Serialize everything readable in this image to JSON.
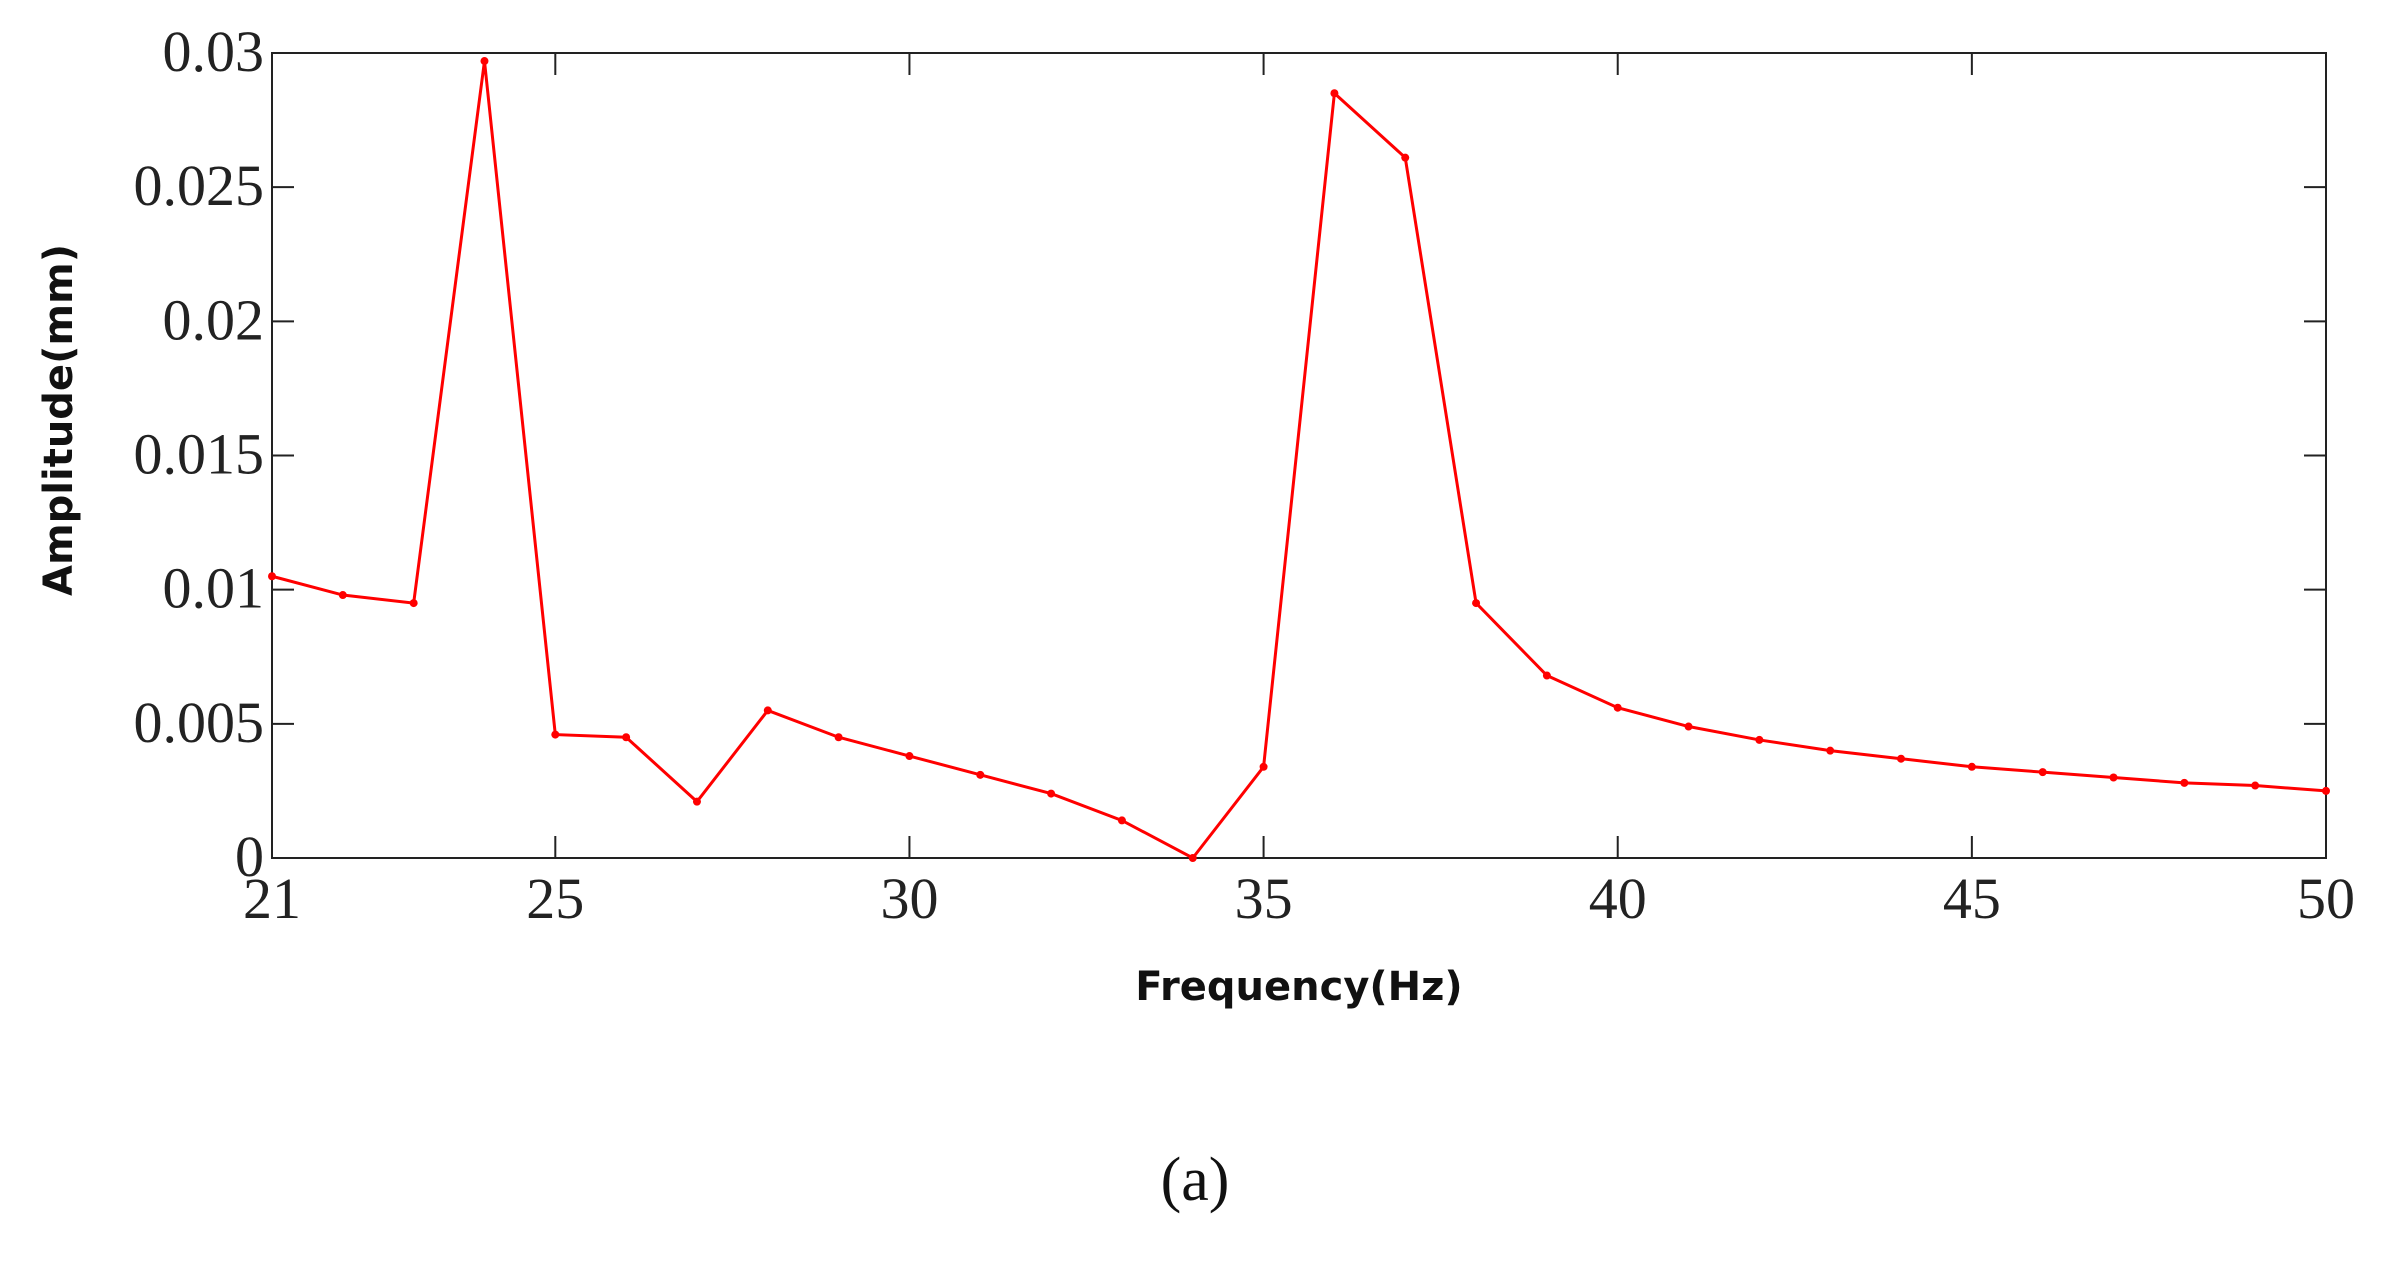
{
  "chart_data": {
    "type": "line",
    "x_label": "Frequency(Hz)",
    "y_label": "Amplitude(mm)",
    "caption": "(a)",
    "x": [
      21,
      22,
      23,
      24,
      25,
      26,
      27,
      28,
      29,
      30,
      31,
      32,
      33,
      34,
      35,
      36,
      37,
      38,
      39,
      40,
      41,
      42,
      43,
      44,
      45,
      46,
      47,
      48,
      49,
      50
    ],
    "series": [
      {
        "name": "Amplitude",
        "color": "#ff0000",
        "values": [
          0.0105,
          0.0098,
          0.0095,
          0.0297,
          0.0046,
          0.0045,
          0.0021,
          0.0055,
          0.0045,
          0.0038,
          0.0031,
          0.0024,
          0.0014,
          0.0,
          0.0034,
          0.0285,
          0.0261,
          0.0095,
          0.0068,
          0.0056,
          0.0049,
          0.0044,
          0.004,
          0.0037,
          0.0034,
          0.0032,
          0.003,
          0.0028,
          0.0027,
          0.0025
        ]
      }
    ],
    "xlim": [
      21,
      50
    ],
    "xticks": [
      21,
      25,
      30,
      35,
      40,
      45,
      50
    ],
    "ylim": [
      0,
      0.03
    ],
    "yticks": [
      0,
      0.005,
      0.01,
      0.015,
      0.02,
      0.025,
      0.03
    ]
  }
}
